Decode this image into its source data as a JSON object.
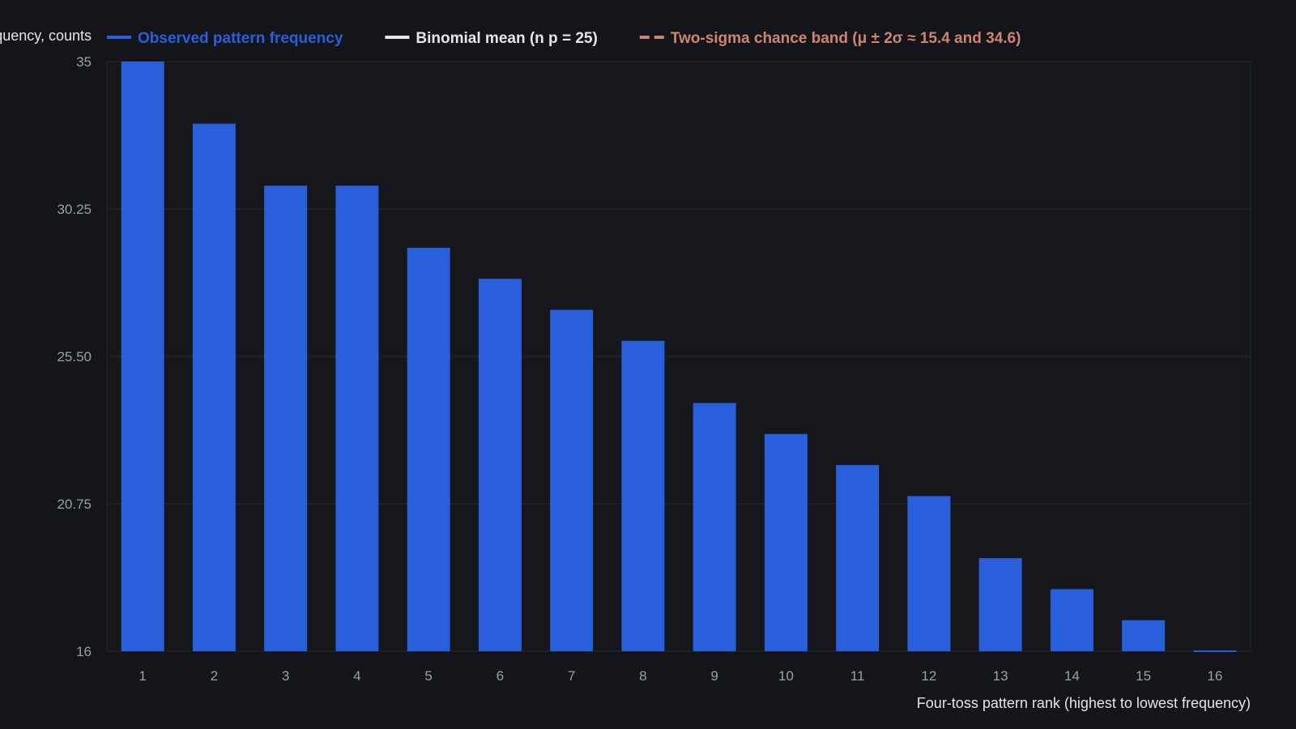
{
  "chart_data": {
    "type": "bar",
    "title": "",
    "xlabel": "Four-toss pattern rank (highest to lowest frequency)",
    "ylabel": "Frequency, counts",
    "categories": [
      "1",
      "2",
      "3",
      "4",
      "5",
      "6",
      "7",
      "8",
      "9",
      "10",
      "11",
      "12",
      "13",
      "14",
      "15",
      "16"
    ],
    "series": [
      {
        "name": "Observed pattern frequency",
        "values": [
          35,
          33,
          31,
          31,
          29,
          28,
          27,
          26,
          24,
          23,
          22,
          21,
          19,
          18,
          17,
          16
        ]
      }
    ],
    "ylim": [
      16,
      35
    ],
    "yticks": [
      "16",
      "20.75",
      "25.50",
      "30.25",
      "35"
    ],
    "grid": true,
    "legend": {
      "position": "top",
      "entries": [
        {
          "label": "Observed pattern frequency",
          "style": "solid",
          "color": "#2a5fdc"
        },
        {
          "label": "Binomial mean (n p = 25)",
          "style": "solid",
          "color": "#e6e6e6"
        },
        {
          "label": "Two-sigma chance band (μ ± 2σ ≈ 15.4 and 34.6)",
          "style": "dashed",
          "color": "#cf8472"
        }
      ]
    },
    "colors": {
      "bar": "#2a5fdc",
      "background": "#13151a",
      "grid": "#262a31"
    }
  }
}
